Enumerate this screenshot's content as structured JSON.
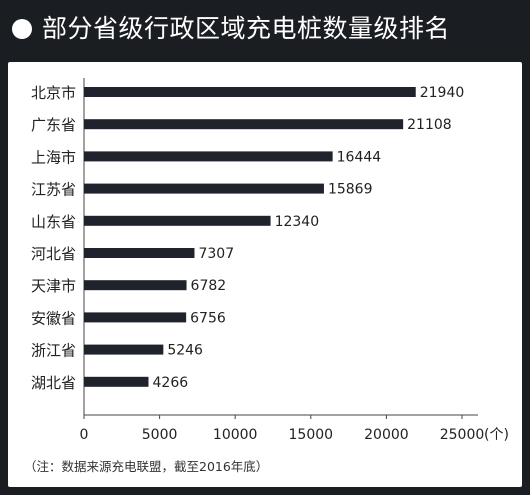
{
  "header": {
    "title": "部分省级行政区域充电桩数量级排名"
  },
  "note": "（注：数据来源充电联盟，截至2016年底）",
  "colors": {
    "background": "#1a1d22",
    "panel": "#ffffff",
    "bar": "#1f232b",
    "text": "#222222"
  },
  "chart_data": {
    "type": "bar",
    "orientation": "horizontal",
    "categories": [
      "北京市",
      "广东省",
      "上海市",
      "江苏省",
      "山东省",
      "河北省",
      "天津市",
      "安徽省",
      "浙江省",
      "湖北省"
    ],
    "values": [
      21940,
      21108,
      16444,
      15869,
      12340,
      7307,
      6782,
      6756,
      5246,
      4266
    ],
    "xticks": [
      "0",
      "5000",
      "10000",
      "15000",
      "20000",
      "25000"
    ],
    "xunit": "(个)",
    "xlim": [
      0,
      25000
    ],
    "grid": false,
    "data_labels": true
  }
}
